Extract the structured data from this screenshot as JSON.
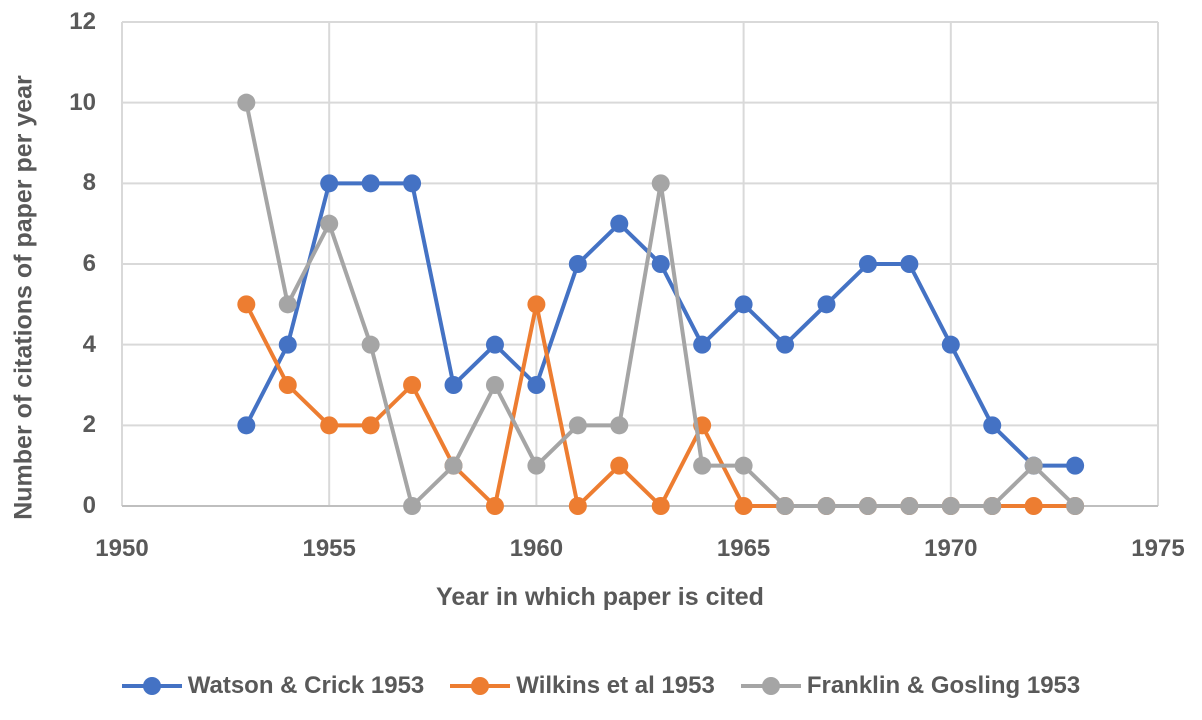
{
  "chart_data": {
    "type": "line",
    "title": "",
    "xlabel": "Year in which paper is cited",
    "ylabel": "Number of citations of paper per year",
    "xlim": [
      1950,
      1975
    ],
    "ylim": [
      0,
      12
    ],
    "x_ticks": [
      1950,
      1955,
      1960,
      1965,
      1970,
      1975
    ],
    "y_ticks": [
      0,
      2,
      4,
      6,
      8,
      10,
      12
    ],
    "grid": true,
    "legend_position": "bottom",
    "x": [
      1953,
      1954,
      1955,
      1956,
      1957,
      1958,
      1959,
      1960,
      1961,
      1962,
      1963,
      1964,
      1965,
      1966,
      1967,
      1968,
      1969,
      1970,
      1971,
      1972,
      1973
    ],
    "series": [
      {
        "name": "Watson & Crick 1953",
        "color": "#4472C4",
        "values": [
          2,
          4,
          8,
          8,
          8,
          3,
          4,
          3,
          6,
          7,
          6,
          4,
          5,
          4,
          5,
          6,
          6,
          4,
          2,
          1,
          1
        ]
      },
      {
        "name": "Wilkins et al 1953",
        "color": "#ED7D31",
        "values": [
          5,
          3,
          2,
          2,
          3,
          1,
          0,
          5,
          0,
          1,
          0,
          2,
          0,
          0,
          0,
          0,
          0,
          0,
          0,
          0,
          0
        ]
      },
      {
        "name": "Franklin & Gosling 1953",
        "color": "#A5A5A5",
        "values": [
          10,
          5,
          7,
          4,
          0,
          1,
          3,
          1,
          2,
          2,
          8,
          1,
          1,
          0,
          0,
          0,
          0,
          0,
          0,
          1,
          0
        ]
      }
    ]
  },
  "legend": {
    "items": [
      {
        "label": "Watson & Crick 1953",
        "color": "#4472C4"
      },
      {
        "label": "Wilkins et al 1953",
        "color": "#ED7D31"
      },
      {
        "label": "Franklin & Gosling 1953",
        "color": "#A5A5A5"
      }
    ]
  },
  "axes": {
    "x_label": "Year in which paper is cited",
    "y_label": "Number of citations of paper per year",
    "x_ticks": [
      "1950",
      "1955",
      "1960",
      "1965",
      "1970",
      "1975"
    ],
    "y_ticks": [
      "0",
      "2",
      "4",
      "6",
      "8",
      "10",
      "12"
    ]
  }
}
